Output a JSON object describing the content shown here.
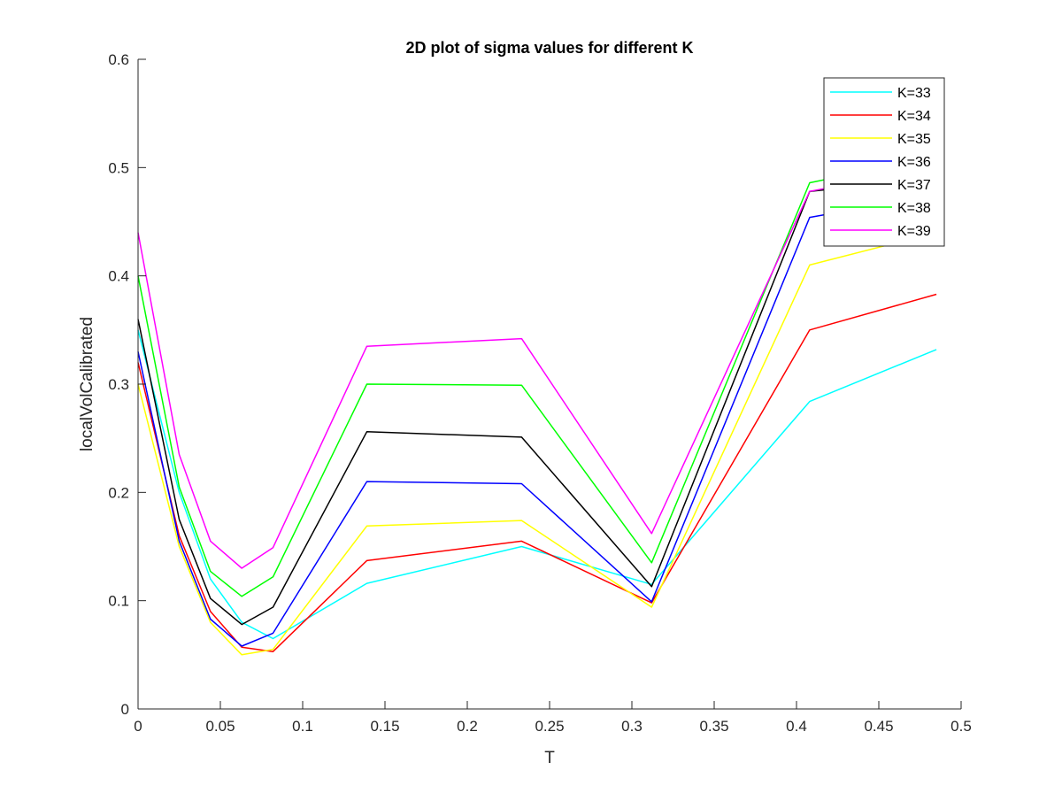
{
  "chart_data": {
    "type": "line",
    "title": "2D plot of sigma values for different K",
    "xlabel": "T",
    "ylabel": "localVolCalibrated",
    "xlim": [
      0,
      0.5
    ],
    "ylim": [
      0,
      0.6
    ],
    "xticks": [
      "0",
      "0.05",
      "0.1",
      "0.15",
      "0.2",
      "0.25",
      "0.3",
      "0.35",
      "0.4",
      "0.45",
      "0.5"
    ],
    "yticks": [
      "0",
      "0.1",
      "0.2",
      "0.3",
      "0.4",
      "0.5",
      "0.6"
    ],
    "grid": false,
    "legend_position": "top-right",
    "x": [
      0,
      0.025,
      0.044,
      0.063,
      0.082,
      0.139,
      0.233,
      0.312,
      0.408,
      0.485
    ],
    "series": [
      {
        "name": "K=33",
        "color": "#00ffff",
        "values": [
          0.35,
          0.2,
          0.12,
          0.08,
          0.065,
          0.116,
          0.15,
          0.115,
          0.284,
          0.332
        ]
      },
      {
        "name": "K=34",
        "color": "#ff0000",
        "values": [
          0.32,
          0.16,
          0.09,
          0.057,
          0.053,
          0.137,
          0.155,
          0.098,
          0.35,
          0.383
        ]
      },
      {
        "name": "K=35",
        "color": "#ffff00",
        "values": [
          0.3,
          0.15,
          0.08,
          0.05,
          0.055,
          0.169,
          0.174,
          0.094,
          0.41,
          0.44
        ]
      },
      {
        "name": "K=36",
        "color": "#0000ff",
        "values": [
          0.33,
          0.155,
          0.083,
          0.058,
          0.07,
          0.21,
          0.208,
          0.099,
          0.454,
          0.475
        ]
      },
      {
        "name": "K=37",
        "color": "#000000",
        "values": [
          0.36,
          0.175,
          0.102,
          0.078,
          0.094,
          0.256,
          0.251,
          0.113,
          0.478,
          0.49
        ]
      },
      {
        "name": "K=38",
        "color": "#00ff00",
        "values": [
          0.4,
          0.205,
          0.127,
          0.104,
          0.122,
          0.3,
          0.299,
          0.135,
          0.486,
          0.51
        ]
      },
      {
        "name": "K=39",
        "color": "#ff00ff",
        "values": [
          0.44,
          0.235,
          0.155,
          0.13,
          0.149,
          0.335,
          0.342,
          0.162,
          0.478,
          0.5
        ]
      }
    ]
  }
}
